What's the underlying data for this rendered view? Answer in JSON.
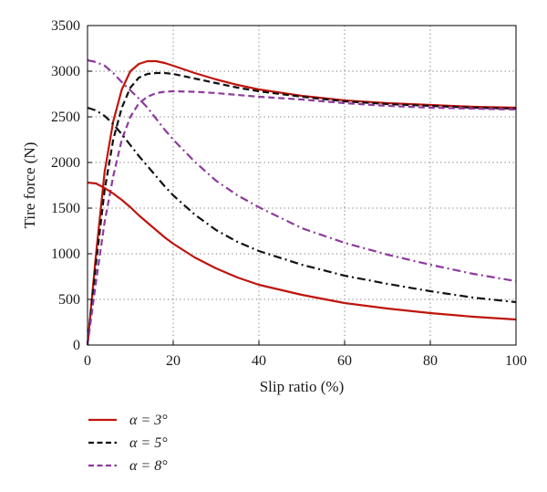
{
  "chart_data": {
    "type": "line",
    "title": "",
    "xlabel": "Slip ratio (%)",
    "ylabel": "Tire force (N)",
    "xlim": [
      0,
      100
    ],
    "ylim": [
      0,
      3500
    ],
    "xticks": [
      0,
      20,
      40,
      60,
      80,
      100
    ],
    "yticks": [
      0,
      500,
      1000,
      1500,
      2000,
      2500,
      3000,
      3500
    ],
    "grid": true,
    "legend_position": "below-left",
    "legend": [
      {
        "label": "α = 3°",
        "color": "#c0140c",
        "dash": "solid"
      },
      {
        "label": "α = 5°",
        "color": "#111111",
        "dash": "dashed"
      },
      {
        "label": "α = 8°",
        "color": "#8e3a9d",
        "dash": "dashed"
      }
    ],
    "series": [
      {
        "kind": "longitudinal",
        "color": "#c0140c",
        "dash": "solid",
        "points": [
          [
            0,
            0
          ],
          [
            2,
            1000
          ],
          [
            4,
            1900
          ],
          [
            6,
            2450
          ],
          [
            8,
            2800
          ],
          [
            10,
            3000
          ],
          [
            12,
            3080
          ],
          [
            14,
            3110
          ],
          [
            16,
            3110
          ],
          [
            18,
            3090
          ],
          [
            20,
            3060
          ],
          [
            25,
            2980
          ],
          [
            30,
            2910
          ],
          [
            35,
            2850
          ],
          [
            40,
            2800
          ],
          [
            50,
            2730
          ],
          [
            60,
            2680
          ],
          [
            70,
            2650
          ],
          [
            80,
            2630
          ],
          [
            90,
            2610
          ],
          [
            100,
            2600
          ]
        ]
      },
      {
        "kind": "longitudinal",
        "color": "#111111",
        "dash": "dashed",
        "points": [
          [
            0,
            0
          ],
          [
            2,
            900
          ],
          [
            4,
            1700
          ],
          [
            6,
            2250
          ],
          [
            8,
            2600
          ],
          [
            10,
            2820
          ],
          [
            12,
            2930
          ],
          [
            14,
            2970
          ],
          [
            16,
            2980
          ],
          [
            18,
            2980
          ],
          [
            20,
            2970
          ],
          [
            25,
            2920
          ],
          [
            30,
            2870
          ],
          [
            35,
            2820
          ],
          [
            40,
            2780
          ],
          [
            50,
            2720
          ],
          [
            60,
            2670
          ],
          [
            70,
            2640
          ],
          [
            80,
            2620
          ],
          [
            90,
            2600
          ],
          [
            100,
            2590
          ]
        ]
      },
      {
        "kind": "longitudinal",
        "color": "#8e3a9d",
        "dash": "dashed",
        "points": [
          [
            0,
            0
          ],
          [
            2,
            700
          ],
          [
            4,
            1350
          ],
          [
            6,
            1850
          ],
          [
            8,
            2250
          ],
          [
            10,
            2500
          ],
          [
            12,
            2650
          ],
          [
            14,
            2720
          ],
          [
            16,
            2760
          ],
          [
            18,
            2775
          ],
          [
            20,
            2780
          ],
          [
            25,
            2775
          ],
          [
            30,
            2760
          ],
          [
            35,
            2740
          ],
          [
            40,
            2720
          ],
          [
            50,
            2690
          ],
          [
            60,
            2650
          ],
          [
            70,
            2620
          ],
          [
            80,
            2600
          ],
          [
            90,
            2590
          ],
          [
            100,
            2580
          ]
        ]
      },
      {
        "kind": "lateral",
        "color": "#c0140c",
        "dash": "solid",
        "points": [
          [
            0,
            1780
          ],
          [
            2,
            1770
          ],
          [
            4,
            1720
          ],
          [
            6,
            1660
          ],
          [
            8,
            1590
          ],
          [
            10,
            1510
          ],
          [
            12,
            1420
          ],
          [
            14,
            1340
          ],
          [
            16,
            1260
          ],
          [
            18,
            1180
          ],
          [
            20,
            1110
          ],
          [
            25,
            960
          ],
          [
            30,
            840
          ],
          [
            35,
            740
          ],
          [
            40,
            660
          ],
          [
            50,
            550
          ],
          [
            60,
            460
          ],
          [
            70,
            400
          ],
          [
            80,
            350
          ],
          [
            90,
            310
          ],
          [
            100,
            280
          ]
        ]
      },
      {
        "kind": "lateral",
        "color": "#111111",
        "dash": "dashdot",
        "points": [
          [
            0,
            2600
          ],
          [
            2,
            2570
          ],
          [
            4,
            2510
          ],
          [
            6,
            2420
          ],
          [
            8,
            2310
          ],
          [
            10,
            2190
          ],
          [
            12,
            2070
          ],
          [
            14,
            1960
          ],
          [
            16,
            1850
          ],
          [
            18,
            1740
          ],
          [
            20,
            1640
          ],
          [
            25,
            1430
          ],
          [
            30,
            1260
          ],
          [
            35,
            1130
          ],
          [
            40,
            1030
          ],
          [
            50,
            880
          ],
          [
            60,
            760
          ],
          [
            70,
            670
          ],
          [
            80,
            590
          ],
          [
            90,
            520
          ],
          [
            100,
            470
          ]
        ]
      },
      {
        "kind": "lateral",
        "color": "#8e3a9d",
        "dash": "dashdot",
        "points": [
          [
            0,
            3120
          ],
          [
            2,
            3100
          ],
          [
            4,
            3060
          ],
          [
            6,
            2980
          ],
          [
            8,
            2880
          ],
          [
            10,
            2790
          ],
          [
            12,
            2700
          ],
          [
            14,
            2600
          ],
          [
            16,
            2480
          ],
          [
            18,
            2360
          ],
          [
            20,
            2250
          ],
          [
            25,
            2010
          ],
          [
            30,
            1800
          ],
          [
            35,
            1640
          ],
          [
            40,
            1510
          ],
          [
            50,
            1280
          ],
          [
            60,
            1120
          ],
          [
            70,
            990
          ],
          [
            80,
            880
          ],
          [
            90,
            780
          ],
          [
            100,
            700
          ]
        ]
      }
    ]
  }
}
